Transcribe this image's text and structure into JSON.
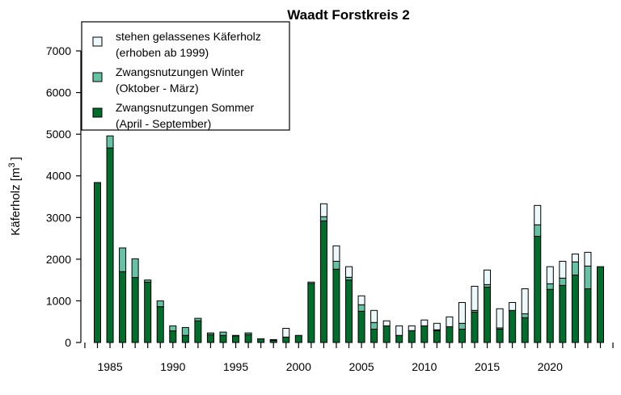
{
  "chart_data": {
    "type": "bar",
    "stacked": true,
    "title": "Waadt Forstkreis 2",
    "xlabel": "",
    "ylabel": "Käferholz [m",
    "ylabel_sup": "3",
    "ylabel_end": "]",
    "ylim": [
      0,
      7000
    ],
    "yticks": [
      0,
      1000,
      2000,
      3000,
      4000,
      5000,
      6000,
      7000
    ],
    "xtick_labels": [
      "1985",
      "1990",
      "1995",
      "2000",
      "2005",
      "2010",
      "2015",
      "2020"
    ],
    "legend_position": "top-left",
    "categories": [
      1984,
      1985,
      1986,
      1987,
      1988,
      1989,
      1990,
      1991,
      1992,
      1993,
      1994,
      1995,
      1996,
      1997,
      1998,
      1999,
      2000,
      2001,
      2002,
      2003,
      2004,
      2005,
      2006,
      2007,
      2008,
      2009,
      2010,
      2011,
      2012,
      2013,
      2014,
      2015,
      2016,
      2017,
      2018,
      2019,
      2020,
      2021,
      2022,
      2023,
      2024
    ],
    "series": [
      {
        "name": "Zwangsnutzungen Sommer",
        "name2": "(April - September)",
        "color": "#006d2c",
        "values": [
          3840,
          4670,
          1700,
          1560,
          1450,
          860,
          280,
          170,
          520,
          190,
          170,
          160,
          190,
          90,
          50,
          130,
          170,
          1420,
          2920,
          1760,
          1500,
          750,
          320,
          400,
          170,
          285,
          400,
          285,
          380,
          320,
          730,
          1330,
          320,
          770,
          595,
          2550,
          1275,
          1370,
          1620,
          1290,
          1820
        ]
      },
      {
        "name": "Zwangsnutzungen Winter",
        "name2": "(Oktober - März)",
        "color": "#66c2a4",
        "values": [
          0,
          290,
          570,
          450,
          50,
          140,
          120,
          190,
          60,
          40,
          80,
          10,
          40,
          0,
          20,
          0,
          0,
          0,
          100,
          190,
          65,
          155,
          160,
          0,
          0,
          0,
          0,
          20,
          0,
          140,
          40,
          60,
          30,
          0,
          95,
          275,
          135,
          175,
          315,
          545,
          0
        ]
      },
      {
        "name": "stehen gelassenes Käferholz",
        "name2": "(erhoben ab 1999)",
        "color": "#edf8fb",
        "values": [
          0,
          0,
          0,
          0,
          0,
          0,
          0,
          0,
          0,
          0,
          0,
          0,
          0,
          0,
          0,
          210,
          0,
          30,
          310,
          370,
          255,
          215,
          290,
          120,
          230,
          115,
          140,
          155,
          235,
          500,
          580,
          350,
          460,
          190,
          600,
          465,
          410,
          405,
          190,
          330,
          0
        ]
      }
    ]
  }
}
